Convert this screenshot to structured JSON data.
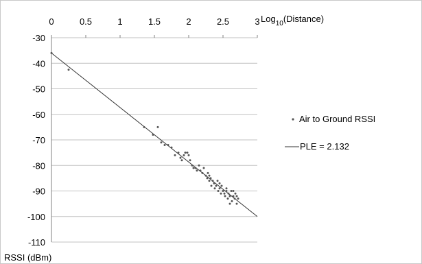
{
  "chart_data": {
    "type": "scatter",
    "title": "",
    "xlabel_main": "Log",
    "xlabel_sub": "10",
    "xlabel_rest": "(Distance)",
    "ylabel": "RSSI (dBm)",
    "xlim": [
      0,
      3
    ],
    "ylim": [
      -110,
      -30
    ],
    "x_ticks": [
      "0",
      "0.5",
      "1",
      "1.5",
      "2",
      "2.5",
      "3"
    ],
    "y_ticks": [
      "-30",
      "-40",
      "-50",
      "-60",
      "-70",
      "-80",
      "-90",
      "-100",
      "-110"
    ],
    "grid": "horizontal",
    "legend_position": "right",
    "colors": {
      "points": "#555555",
      "fit_line": "#333333",
      "grid": "#c0c0c0",
      "axis": "#808080"
    },
    "series": [
      {
        "name": "Air to Ground RSSI",
        "type": "scatter",
        "points": [
          [
            0.0,
            -36
          ],
          [
            0.25,
            -42.5
          ],
          [
            1.35,
            -65
          ],
          [
            1.48,
            -68
          ],
          [
            1.55,
            -65
          ],
          [
            1.6,
            -71
          ],
          [
            1.65,
            -72
          ],
          [
            1.7,
            -72
          ],
          [
            1.75,
            -73
          ],
          [
            1.8,
            -76
          ],
          [
            1.85,
            -75
          ],
          [
            1.88,
            -77
          ],
          [
            1.9,
            -78
          ],
          [
            1.93,
            -76
          ],
          [
            1.95,
            -75
          ],
          [
            1.98,
            -75
          ],
          [
            2.0,
            -76
          ],
          [
            2.02,
            -78
          ],
          [
            2.05,
            -80
          ],
          [
            2.07,
            -81
          ],
          [
            2.1,
            -81
          ],
          [
            2.12,
            -82
          ],
          [
            2.15,
            -80
          ],
          [
            2.17,
            -82
          ],
          [
            2.2,
            -83
          ],
          [
            2.22,
            -81
          ],
          [
            2.25,
            -84
          ],
          [
            2.27,
            -85
          ],
          [
            2.28,
            -83
          ],
          [
            2.3,
            -86
          ],
          [
            2.32,
            -85
          ],
          [
            2.33,
            -88
          ],
          [
            2.35,
            -86
          ],
          [
            2.37,
            -87
          ],
          [
            2.38,
            -89
          ],
          [
            2.4,
            -88
          ],
          [
            2.42,
            -86
          ],
          [
            2.43,
            -90
          ],
          [
            2.45,
            -89
          ],
          [
            2.47,
            -91
          ],
          [
            2.48,
            -88
          ],
          [
            2.5,
            -90
          ],
          [
            2.52,
            -91
          ],
          [
            2.53,
            -92
          ],
          [
            2.55,
            -90
          ],
          [
            2.57,
            -93
          ],
          [
            2.58,
            -91
          ],
          [
            2.6,
            -92
          ],
          [
            2.62,
            -90
          ],
          [
            2.63,
            -94
          ],
          [
            2.65,
            -92
          ],
          [
            2.67,
            -93
          ],
          [
            2.68,
            -91
          ],
          [
            2.7,
            -95
          ],
          [
            2.72,
            -93
          ],
          [
            2.3,
            -84
          ],
          [
            2.45,
            -87
          ],
          [
            2.55,
            -89
          ],
          [
            2.6,
            -95
          ],
          [
            2.65,
            -90
          ],
          [
            2.7,
            -92
          ]
        ]
      },
      {
        "name": "PLE = 2.132",
        "type": "line",
        "points": [
          [
            0,
            -36
          ],
          [
            3,
            -100
          ]
        ]
      }
    ]
  }
}
